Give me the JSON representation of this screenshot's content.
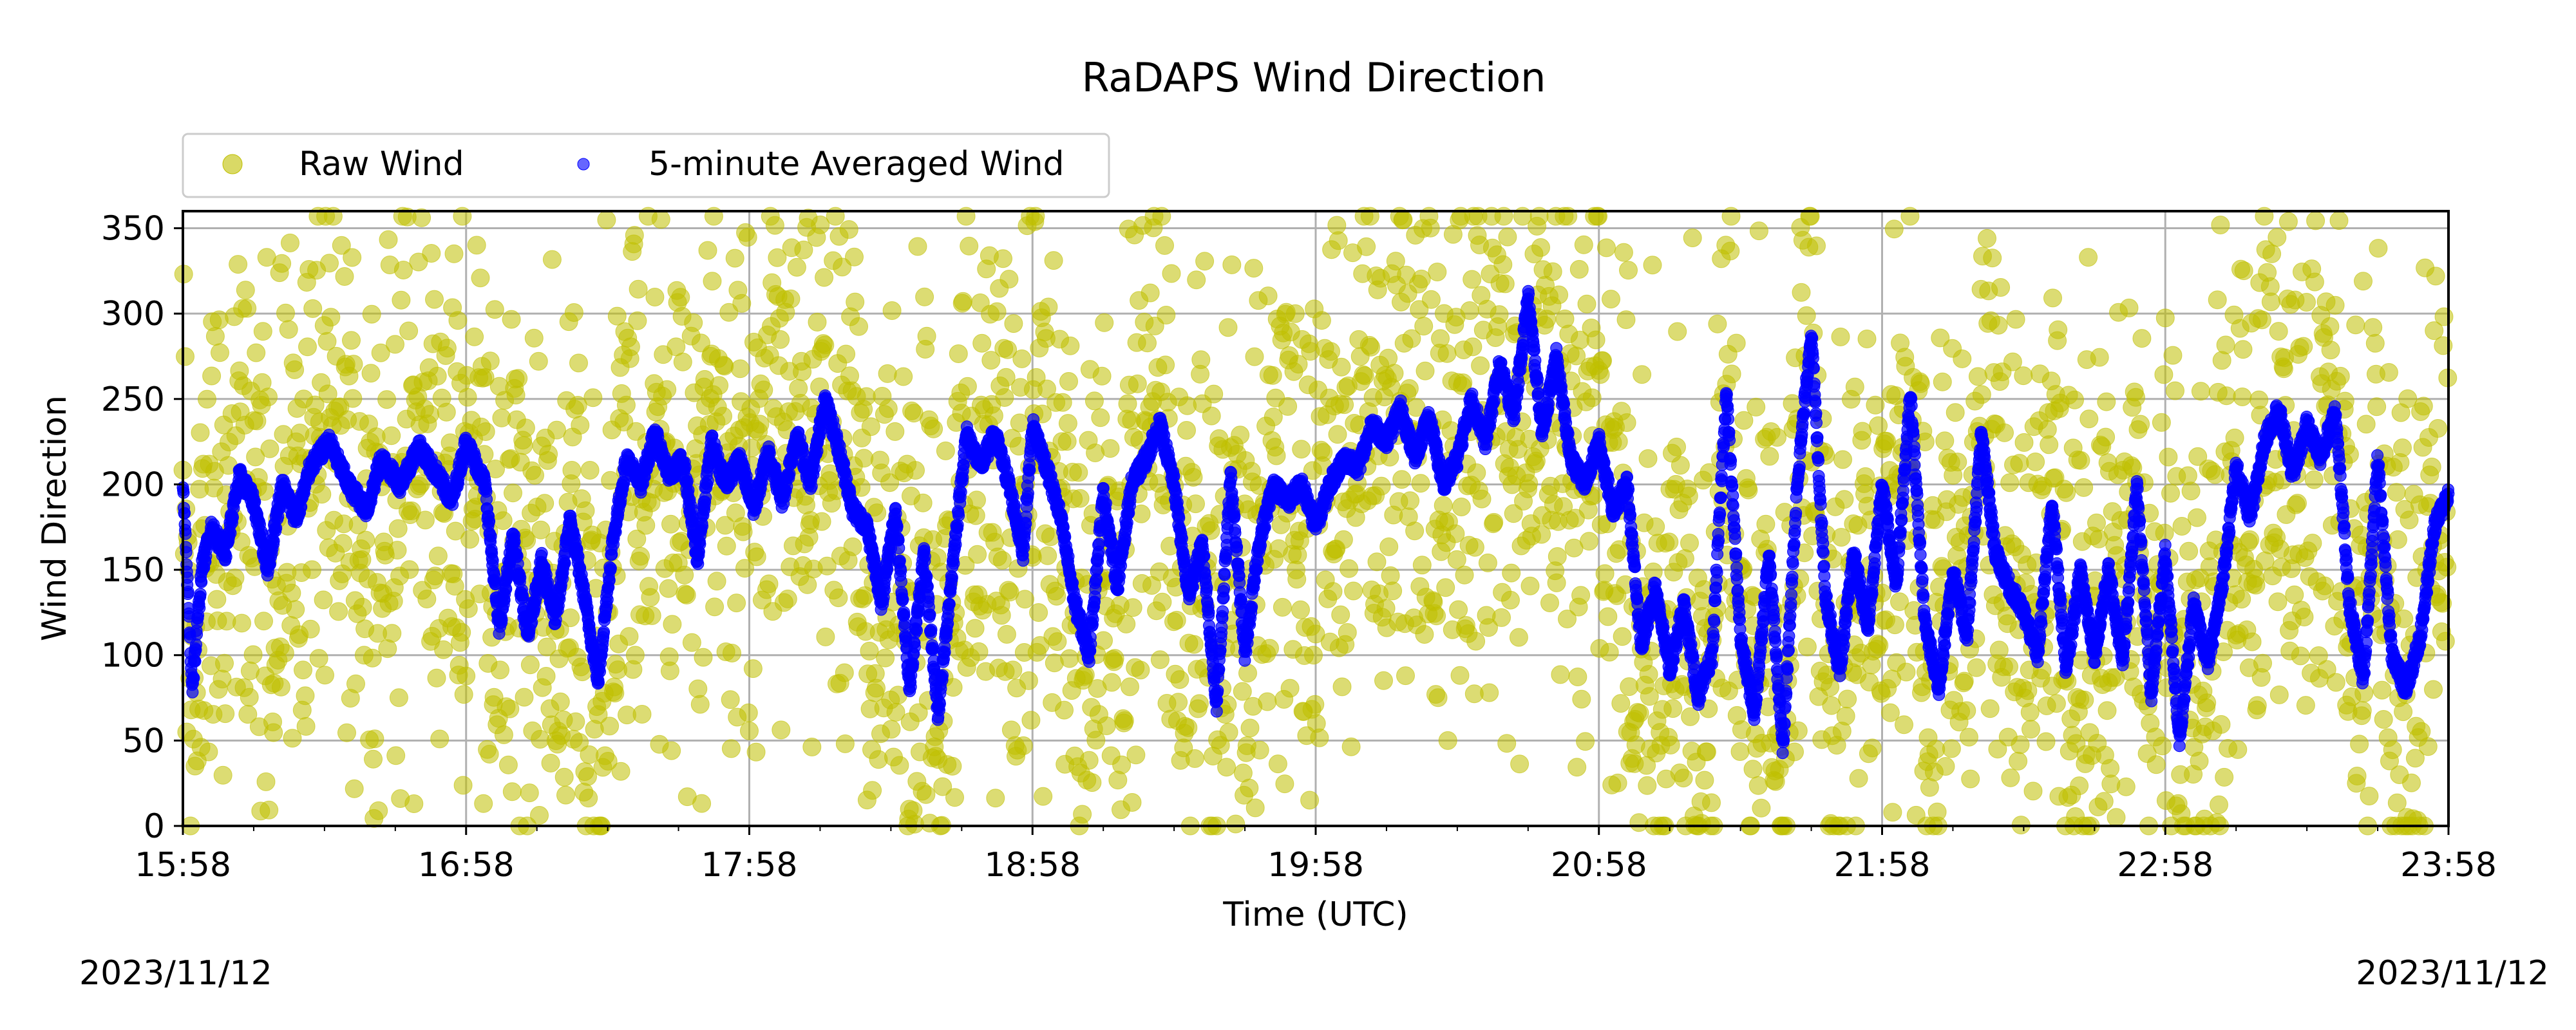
{
  "chart_data": {
    "type": "scatter",
    "title": "RaDAPS Wind Direction",
    "xlabel": "Time (UTC)",
    "ylabel": "Wind Direction",
    "xlim": [
      "15:58",
      "23:58"
    ],
    "ylim": [
      0,
      360
    ],
    "xticks": [
      "15:58",
      "16:58",
      "17:58",
      "18:58",
      "19:58",
      "20:58",
      "21:58",
      "22:58",
      "23:58"
    ],
    "yticks": [
      0,
      50,
      100,
      150,
      200,
      250,
      300,
      350
    ],
    "grid": true,
    "legend": {
      "placement": "upper-left, above plot",
      "columns": 2
    },
    "date_left": "2023/11/12",
    "date_right": "2023/11/12",
    "series": [
      {
        "name": "Raw Wind",
        "color": "#bfbf00",
        "marker": "circle",
        "alpha": 0.6,
        "note": "dense scatter of individual readings spread roughly around the averaged line across 0-360",
        "spread_deg": 110
      },
      {
        "name": "5-minute Averaged Wind",
        "color": "#0000ff",
        "marker": "small-dot",
        "points": [
          [
            "15:58",
            200
          ],
          [
            "16:00",
            80
          ],
          [
            "16:02",
            150
          ],
          [
            "16:04",
            175
          ],
          [
            "16:07",
            160
          ],
          [
            "16:10",
            205
          ],
          [
            "16:13",
            190
          ],
          [
            "16:16",
            150
          ],
          [
            "16:19",
            200
          ],
          [
            "16:22",
            180
          ],
          [
            "16:25",
            210
          ],
          [
            "16:29",
            225
          ],
          [
            "16:33",
            200
          ],
          [
            "16:37",
            185
          ],
          [
            "16:40",
            215
          ],
          [
            "16:44",
            200
          ],
          [
            "16:48",
            222
          ],
          [
            "16:52",
            205
          ],
          [
            "16:55",
            190
          ],
          [
            "16:58",
            225
          ],
          [
            "17:02",
            200
          ],
          [
            "17:05",
            115
          ],
          [
            "17:08",
            170
          ],
          [
            "17:11",
            110
          ],
          [
            "17:14",
            155
          ],
          [
            "17:17",
            120
          ],
          [
            "17:20",
            180
          ],
          [
            "17:23",
            135
          ],
          [
            "17:26",
            85
          ],
          [
            "17:29",
            165
          ],
          [
            "17:32",
            215
          ],
          [
            "17:35",
            200
          ],
          [
            "17:38",
            230
          ],
          [
            "17:41",
            205
          ],
          [
            "17:44",
            215
          ],
          [
            "17:47",
            155
          ],
          [
            "17:50",
            225
          ],
          [
            "17:53",
            200
          ],
          [
            "17:56",
            215
          ],
          [
            "17:59",
            185
          ],
          [
            "18:02",
            220
          ],
          [
            "18:05",
            190
          ],
          [
            "18:08",
            230
          ],
          [
            "18:11",
            200
          ],
          [
            "18:14",
            250
          ],
          [
            "18:17",
            220
          ],
          [
            "18:20",
            185
          ],
          [
            "18:23",
            175
          ],
          [
            "18:26",
            130
          ],
          [
            "18:29",
            185
          ],
          [
            "18:32",
            80
          ],
          [
            "18:35",
            160
          ],
          [
            "18:38",
            65
          ],
          [
            "18:41",
            150
          ],
          [
            "18:44",
            230
          ],
          [
            "18:47",
            210
          ],
          [
            "18:50",
            230
          ],
          [
            "18:53",
            200
          ],
          [
            "18:56",
            160
          ],
          [
            "18:58",
            235
          ],
          [
            "19:01",
            210
          ],
          [
            "19:04",
            180
          ],
          [
            "19:07",
            130
          ],
          [
            "19:10",
            100
          ],
          [
            "19:13",
            195
          ],
          [
            "19:16",
            140
          ],
          [
            "19:19",
            200
          ],
          [
            "19:22",
            215
          ],
          [
            "19:25",
            235
          ],
          [
            "19:28",
            200
          ],
          [
            "19:31",
            135
          ],
          [
            "19:34",
            165
          ],
          [
            "19:37",
            70
          ],
          [
            "19:40",
            205
          ],
          [
            "19:43",
            100
          ],
          [
            "19:46",
            165
          ],
          [
            "19:49",
            200
          ],
          [
            "19:52",
            190
          ],
          [
            "19:55",
            200
          ],
          [
            "19:58",
            175
          ],
          [
            "20:01",
            200
          ],
          [
            "20:04",
            215
          ],
          [
            "20:07",
            210
          ],
          [
            "20:10",
            235
          ],
          [
            "20:13",
            225
          ],
          [
            "20:16",
            245
          ],
          [
            "20:19",
            215
          ],
          [
            "20:22",
            240
          ],
          [
            "20:25",
            200
          ],
          [
            "20:28",
            215
          ],
          [
            "20:31",
            250
          ],
          [
            "20:34",
            225
          ],
          [
            "20:37",
            270
          ],
          [
            "20:40",
            240
          ],
          [
            "20:43",
            310
          ],
          [
            "20:46",
            230
          ],
          [
            "20:49",
            275
          ],
          [
            "20:52",
            215
          ],
          [
            "20:55",
            200
          ],
          [
            "20:58",
            225
          ],
          [
            "21:01",
            185
          ],
          [
            "21:04",
            200
          ],
          [
            "21:07",
            105
          ],
          [
            "21:10",
            140
          ],
          [
            "21:13",
            90
          ],
          [
            "21:16",
            130
          ],
          [
            "21:19",
            75
          ],
          [
            "21:22",
            100
          ],
          [
            "21:25",
            255
          ],
          [
            "21:28",
            110
          ],
          [
            "21:31",
            65
          ],
          [
            "21:34",
            160
          ],
          [
            "21:37",
            45
          ],
          [
            "21:40",
            200
          ],
          [
            "21:43",
            290
          ],
          [
            "21:46",
            135
          ],
          [
            "21:49",
            90
          ],
          [
            "21:52",
            160
          ],
          [
            "21:55",
            115
          ],
          [
            "21:58",
            200
          ],
          [
            "22:01",
            140
          ],
          [
            "22:04",
            255
          ],
          [
            "22:07",
            120
          ],
          [
            "22:10",
            80
          ],
          [
            "22:13",
            150
          ],
          [
            "22:16",
            110
          ],
          [
            "22:19",
            230
          ],
          [
            "22:22",
            160
          ],
          [
            "22:25",
            140
          ],
          [
            "22:28",
            125
          ],
          [
            "22:31",
            100
          ],
          [
            "22:34",
            190
          ],
          [
            "22:37",
            90
          ],
          [
            "22:40",
            150
          ],
          [
            "22:43",
            100
          ],
          [
            "22:46",
            150
          ],
          [
            "22:49",
            95
          ],
          [
            "22:52",
            200
          ],
          [
            "22:55",
            75
          ],
          [
            "22:58",
            160
          ],
          [
            "23:01",
            50
          ],
          [
            "23:04",
            130
          ],
          [
            "23:07",
            95
          ],
          [
            "23:10",
            140
          ],
          [
            "23:13",
            210
          ],
          [
            "23:16",
            180
          ],
          [
            "23:19",
            225
          ],
          [
            "23:22",
            245
          ],
          [
            "23:25",
            205
          ],
          [
            "23:28",
            235
          ],
          [
            "23:31",
            215
          ],
          [
            "23:34",
            245
          ],
          [
            "23:37",
            130
          ],
          [
            "23:40",
            85
          ],
          [
            "23:43",
            215
          ],
          [
            "23:46",
            100
          ],
          [
            "23:49",
            80
          ],
          [
            "23:52",
            110
          ],
          [
            "23:55",
            175
          ],
          [
            "23:58",
            195
          ]
        ]
      }
    ]
  }
}
